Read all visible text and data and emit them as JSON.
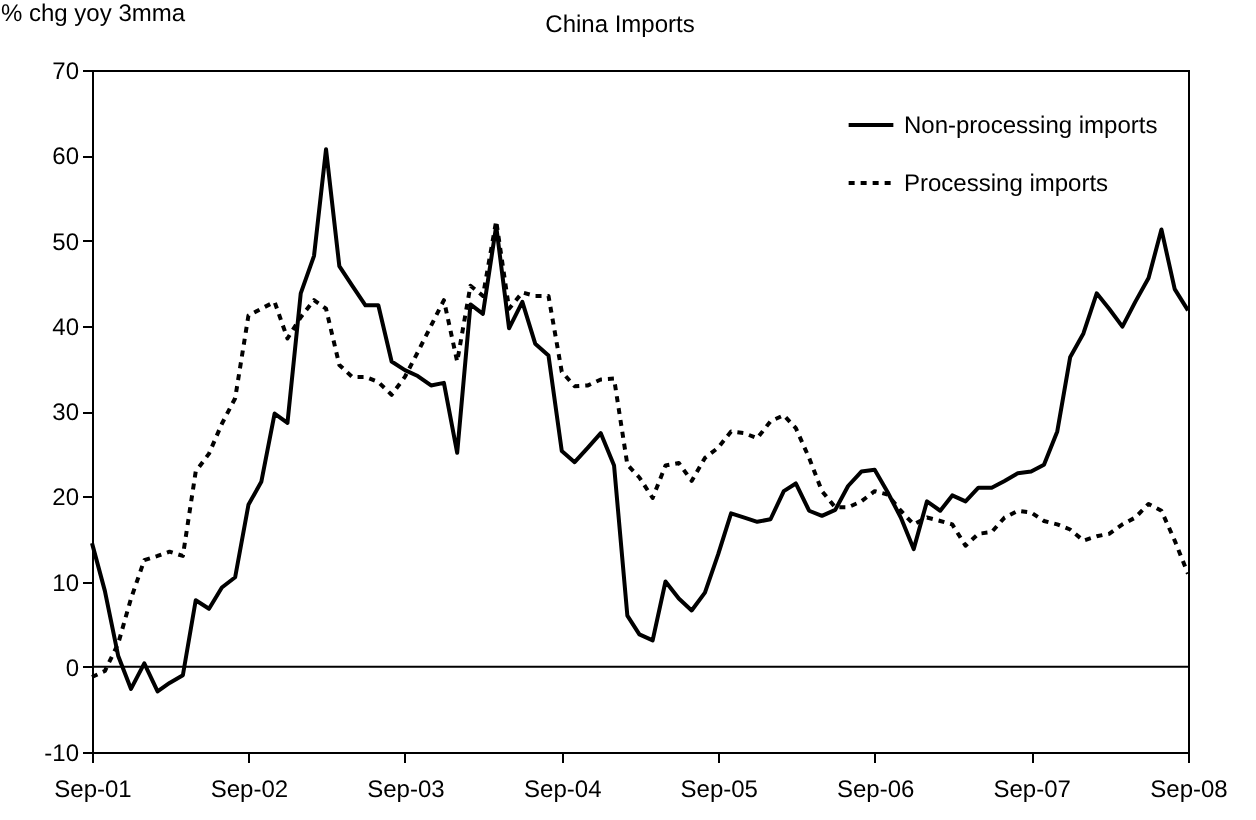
{
  "chart_data": {
    "type": "line",
    "title": "China Imports",
    "ylabel": "% chg yoy 3mma",
    "x": [
      "2001-09",
      "2001-10",
      "2001-11",
      "2001-12",
      "2002-01",
      "2002-02",
      "2002-03",
      "2002-04",
      "2002-05",
      "2002-06",
      "2002-07",
      "2002-08",
      "2002-09",
      "2002-10",
      "2002-11",
      "2002-12",
      "2003-01",
      "2003-02",
      "2003-03",
      "2003-04",
      "2003-05",
      "2003-06",
      "2003-07",
      "2003-08",
      "2003-09",
      "2003-10",
      "2003-11",
      "2003-12",
      "2004-01",
      "2004-02",
      "2004-03",
      "2004-04",
      "2004-05",
      "2004-06",
      "2004-07",
      "2004-08",
      "2004-09",
      "2004-10",
      "2004-11",
      "2004-12",
      "2005-01",
      "2005-02",
      "2005-03",
      "2005-04",
      "2005-05",
      "2005-06",
      "2005-07",
      "2005-08",
      "2005-09",
      "2005-10",
      "2005-11",
      "2005-12",
      "2006-01",
      "2006-02",
      "2006-03",
      "2006-04",
      "2006-05",
      "2006-06",
      "2006-07",
      "2006-08",
      "2006-09",
      "2006-10",
      "2006-11",
      "2006-12",
      "2007-01",
      "2007-02",
      "2007-03",
      "2007-04",
      "2007-05",
      "2007-06",
      "2007-07",
      "2007-08",
      "2007-09",
      "2007-10",
      "2007-11",
      "2007-12",
      "2008-01",
      "2008-02",
      "2008-03",
      "2008-04",
      "2008-05",
      "2008-06",
      "2008-07",
      "2008-08",
      "2008-09"
    ],
    "series": [
      {
        "name": "Non-processing imports",
        "color": "#000000",
        "line_style": "solid",
        "values": [
          14.5,
          8.9,
          1.3,
          -2.6,
          0.4,
          -2.9,
          -1.9,
          -1.0,
          7.8,
          6.8,
          9.3,
          10.5,
          19.0,
          21.7,
          29.7,
          28.6,
          43.8,
          48.2,
          60.7,
          47.0,
          44.7,
          42.4,
          42.4,
          35.8,
          34.8,
          34.1,
          33.0,
          33.3,
          25.1,
          42.5,
          41.4,
          51.7,
          39.7,
          42.8,
          37.9,
          36.5,
          25.3,
          24.0,
          25.7,
          27.4,
          23.6,
          6.0,
          3.8,
          3.1,
          10.0,
          8.0,
          6.6,
          8.7,
          13.2,
          18.0,
          17.5,
          17.0,
          17.3,
          20.6,
          21.5,
          18.3,
          17.7,
          18.4,
          21.2,
          22.9,
          23.1,
          20.5,
          17.5,
          13.8,
          19.4,
          18.3,
          20.1,
          19.4,
          21.0,
          21.0,
          21.8,
          22.7,
          22.9,
          23.7,
          27.6,
          36.3,
          39.1,
          43.8,
          42.0,
          39.9,
          42.8,
          45.6,
          51.3,
          44.3,
          41.8
        ]
      },
      {
        "name": "Processing imports",
        "color": "#000000",
        "line_style": "dashed",
        "values": [
          -1.2,
          -0.5,
          2.7,
          8.0,
          12.5,
          13.0,
          13.5,
          13.0,
          22.9,
          25.0,
          28.5,
          31.5,
          41.2,
          42.0,
          42.8,
          38.5,
          41.0,
          43.0,
          42.0,
          35.4,
          34.0,
          34.0,
          33.4,
          31.9,
          34.0,
          36.9,
          40.0,
          43.0,
          35.8,
          44.7,
          43.5,
          52.3,
          42.0,
          43.9,
          43.5,
          43.5,
          34.6,
          32.9,
          33.0,
          33.7,
          33.8,
          23.7,
          22.2,
          19.8,
          23.6,
          23.9,
          21.8,
          24.5,
          25.7,
          27.6,
          27.4,
          26.8,
          28.8,
          29.5,
          28.0,
          24.5,
          20.6,
          18.7,
          18.7,
          19.4,
          20.6,
          20.2,
          18.3,
          16.7,
          17.5,
          17.1,
          16.7,
          14.2,
          15.6,
          15.8,
          17.5,
          18.3,
          18.1,
          17.1,
          16.7,
          16.1,
          14.8,
          15.3,
          15.6,
          16.7,
          17.5,
          19.1,
          18.3,
          14.8,
          10.9
        ]
      }
    ],
    "xlim": [
      "2001-09",
      "2008-09"
    ],
    "xticks": [
      {
        "value": "2001-09",
        "label": "Sep-01"
      },
      {
        "value": "2002-09",
        "label": "Sep-02"
      },
      {
        "value": "2003-09",
        "label": "Sep-03"
      },
      {
        "value": "2004-09",
        "label": "Sep-04"
      },
      {
        "value": "2005-09",
        "label": "Sep-05"
      },
      {
        "value": "2006-09",
        "label": "Sep-06"
      },
      {
        "value": "2007-09",
        "label": "Sep-07"
      },
      {
        "value": "2008-09",
        "label": "Sep-08"
      }
    ],
    "ylim": [
      -10,
      70
    ],
    "yticks": [
      -10,
      0,
      10,
      20,
      30,
      40,
      50,
      60,
      70
    ],
    "ref_lines": [
      {
        "axis": "y",
        "value": 0
      }
    ],
    "grid": false,
    "legend": "top right",
    "marker": "none"
  }
}
